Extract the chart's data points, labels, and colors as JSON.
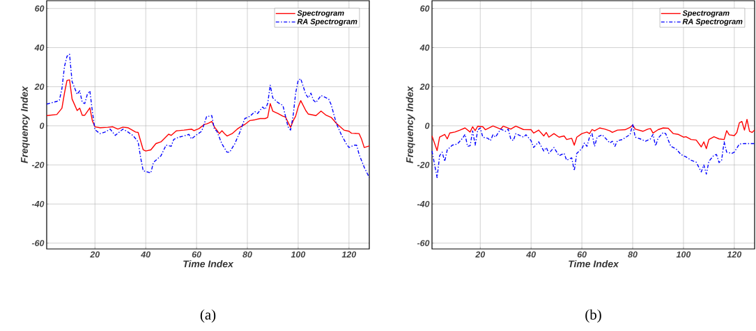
{
  "chart_data": [
    {
      "type": "line",
      "xlabel": "Time Index",
      "ylabel": "Frequency Index",
      "annotations": [
        "(a)"
      ],
      "xlim": [
        1,
        128
      ],
      "ylim": [
        -63,
        64
      ],
      "xticks": [
        20,
        40,
        60,
        80,
        100,
        120
      ],
      "yticks": [
        -60,
        -40,
        -20,
        0,
        20,
        40,
        60
      ],
      "grid": true,
      "legend": "top right",
      "marker": "none",
      "series": [
        {
          "name": "Spectrogram",
          "color": "#ff0000",
          "line_style": "solid",
          "x": [
            1,
            5,
            7,
            8,
            9,
            10,
            11,
            13,
            14,
            15,
            16,
            18,
            19,
            20,
            22,
            25,
            27,
            29,
            31,
            33,
            36,
            37,
            39,
            40,
            42,
            44,
            46,
            49,
            50,
            52,
            55,
            58,
            59,
            61,
            63,
            64,
            65,
            66,
            67,
            69,
            70,
            71,
            72,
            74,
            76,
            77,
            79,
            81,
            83,
            85,
            87,
            88,
            89,
            90,
            92,
            94,
            95,
            97,
            98,
            99,
            100,
            101,
            103,
            104,
            107,
            109,
            111,
            113,
            115,
            118,
            120,
            121,
            124,
            125,
            126,
            128
          ],
          "values": [
            5.2,
            5.8,
            9,
            16.7,
            23.2,
            23.5,
            13.7,
            7.8,
            9,
            5.4,
            5.4,
            9.2,
            2.5,
            -0.5,
            -1,
            -0.8,
            -0.5,
            -1.7,
            -0.7,
            -1,
            -3.2,
            -3.4,
            -12.3,
            -12.9,
            -12.3,
            -9.1,
            -8.2,
            -4.3,
            -4.9,
            -2.6,
            -2.2,
            -1.7,
            -2.5,
            -1.4,
            0.7,
            1,
            1.5,
            2.2,
            -0.5,
            -4,
            -2.5,
            -4,
            -5.2,
            -4,
            -1.7,
            -0.8,
            0.7,
            2.7,
            3.1,
            3.7,
            3.7,
            4.3,
            11.4,
            7.5,
            6.3,
            4.9,
            4.5,
            -0.8,
            2.5,
            4.9,
            9.6,
            12.9,
            7.8,
            6,
            5.2,
            7.5,
            5.4,
            4.3,
            1.3,
            -2.2,
            -2.8,
            -3.8,
            -4,
            -7,
            -11.1,
            -10.3
          ]
        },
        {
          "name": "RA Spectrogram",
          "color": "#0000ff",
          "line_style": "dashdot",
          "x": [
            1,
            5,
            6,
            7,
            8,
            9,
            10,
            11,
            13,
            14,
            15,
            16,
            17,
            18,
            19,
            20,
            22,
            24,
            26,
            28,
            31,
            33,
            35,
            37,
            38,
            39,
            42,
            43,
            46,
            48,
            50,
            51,
            53,
            55,
            57,
            58,
            60,
            62,
            63,
            64,
            65,
            66,
            67,
            68,
            70,
            72,
            73,
            75,
            77,
            79,
            81,
            83,
            84,
            86,
            87,
            88,
            89,
            90,
            92,
            94,
            95,
            96,
            97,
            98,
            99,
            100,
            101,
            103,
            104,
            105,
            106,
            107,
            109,
            111,
            112,
            113,
            115,
            117,
            119,
            120,
            122,
            123,
            124,
            126,
            128
          ],
          "values": [
            11.1,
            12.5,
            13.1,
            19,
            30.3,
            35.6,
            36.6,
            22.6,
            16.1,
            17.9,
            12,
            11.4,
            16.1,
            17.9,
            7.2,
            -2,
            -4,
            -3.2,
            -1.7,
            -4.9,
            -1.7,
            -3.2,
            -5,
            -8.2,
            -16.4,
            -23,
            -24.1,
            -18.8,
            -15.3,
            -9.9,
            -10.5,
            -7,
            -5.8,
            -5.2,
            -4.4,
            -6.7,
            -4.6,
            -2.8,
            0.9,
            4.9,
            4.9,
            5.2,
            -1.7,
            -2.8,
            -9.3,
            -13.5,
            -13.5,
            -9.3,
            -3.4,
            3.7,
            4.9,
            7.2,
            6.3,
            9.6,
            8.4,
            11.4,
            20.8,
            14.3,
            11.9,
            10.4,
            4.9,
            -0.5,
            -2.2,
            4.9,
            16.7,
            23.2,
            24.1,
            16.1,
            14.3,
            16.7,
            13.1,
            11.9,
            15.5,
            14.3,
            13.7,
            10.8,
            1.3,
            -4.6,
            -9.3,
            -11.1,
            -9.9,
            -9.9,
            -14.7,
            -21.2,
            -26.5
          ]
        }
      ]
    },
    {
      "type": "line",
      "xlabel": "Time Index",
      "ylabel": "Frequency Index",
      "annotations": [
        "(b)"
      ],
      "xlim": [
        1,
        128
      ],
      "ylim": [
        -63,
        64
      ],
      "xticks": [
        20,
        40,
        60,
        80,
        100,
        120
      ],
      "yticks": [
        -60,
        -40,
        -20,
        0,
        20,
        40,
        60
      ],
      "grid": true,
      "legend": "top right",
      "marker": "none",
      "series": [
        {
          "name": "Spectrogram",
          "color": "#ff0000",
          "line_style": "solid",
          "x": [
            1,
            3,
            4,
            6,
            7,
            8,
            10,
            12,
            14,
            16,
            17,
            18,
            19,
            21,
            22,
            25,
            28,
            29,
            32,
            34,
            37,
            40,
            41,
            43,
            45,
            46,
            47,
            49,
            51,
            53,
            54,
            56,
            57,
            58,
            60,
            62,
            63,
            64,
            65,
            67,
            69,
            71,
            72,
            74,
            77,
            79,
            80,
            81,
            84,
            86,
            87,
            88,
            90,
            92,
            94,
            96,
            98,
            100,
            101,
            103,
            105,
            107,
            108,
            109,
            110,
            112,
            114,
            116,
            117,
            118,
            120,
            121,
            122,
            123,
            124,
            125,
            126,
            127,
            128
          ],
          "values": [
            -5.2,
            -12.7,
            -5.8,
            -4.4,
            -6.7,
            -3.7,
            -3.2,
            -2.2,
            -1.1,
            -3.2,
            -0.5,
            -2.5,
            -0.2,
            -0.5,
            -2,
            -0.1,
            -1.7,
            -0.2,
            -1.7,
            -0.2,
            -1.9,
            -2,
            -3.7,
            -2.2,
            -5.2,
            -3.4,
            -5.8,
            -4,
            -5.8,
            -5.2,
            -7,
            -6.4,
            -9.9,
            -5.8,
            -4,
            -3.2,
            -4,
            -1.9,
            -2.6,
            -1.1,
            -1.7,
            -2.6,
            -3.4,
            -2.2,
            -2,
            -0.8,
            0.4,
            -1.7,
            -2.8,
            -1.7,
            -1.4,
            -3.7,
            -2,
            -1.1,
            -1.3,
            -4,
            -4.4,
            -5.8,
            -5.6,
            -7,
            -7.3,
            -10.8,
            -8.2,
            -11.7,
            -7,
            -5.6,
            -6.7,
            -7,
            -2.5,
            -4.6,
            -5,
            -3.4,
            1.5,
            2.2,
            -2.2,
            3.3,
            -2.8,
            -3.4,
            -2.2
          ]
        },
        {
          "name": "RA Spectrogram",
          "color": "#0000ff",
          "line_style": "dashdot",
          "x": [
            1,
            3,
            4,
            5,
            6,
            7,
            9,
            11,
            13,
            14,
            15,
            16,
            17,
            18,
            19,
            20,
            21,
            23,
            24,
            25,
            26,
            28,
            30,
            31,
            32,
            33,
            34,
            36,
            37,
            38,
            40,
            41,
            43,
            45,
            46,
            47,
            49,
            51,
            53,
            54,
            56,
            57,
            58,
            60,
            61,
            62,
            63,
            64,
            65,
            66,
            68,
            70,
            71,
            72,
            73,
            74,
            76,
            79,
            80,
            81,
            83,
            85,
            87,
            88,
            89,
            90,
            92,
            93,
            95,
            97,
            99,
            101,
            103,
            105,
            107,
            108,
            109,
            110,
            112,
            113,
            114,
            115,
            116,
            117,
            119,
            120,
            122,
            124,
            128
          ],
          "values": [
            -12.9,
            -26.5,
            -15.3,
            -13.5,
            -18.2,
            -12.3,
            -9.9,
            -9.3,
            -6.4,
            -4.4,
            -10.5,
            -10.2,
            -2.6,
            -9.9,
            -2.2,
            -1.1,
            -5.8,
            -6.4,
            -7.6,
            -4.6,
            -5.8,
            -1.7,
            -2.8,
            -1.7,
            -6.7,
            -7.6,
            -4,
            -5.2,
            -5.8,
            -4.6,
            -7.6,
            -11.1,
            -8.2,
            -12.9,
            -11.1,
            -14.1,
            -11.1,
            -15.3,
            -14.1,
            -17.6,
            -16.4,
            -23,
            -14.1,
            -11.7,
            -8.8,
            -10.5,
            -5.8,
            -4,
            -10.5,
            -5.8,
            -4.6,
            -7.3,
            -8.8,
            -7.9,
            -10.5,
            -7.6,
            -7,
            -4.4,
            0.9,
            -5.8,
            -6.7,
            -7.9,
            -6.7,
            -4.4,
            -10.3,
            -6.4,
            -3.4,
            -4,
            -10.5,
            -11.7,
            -14.7,
            -15.9,
            -17.6,
            -18.6,
            -23.6,
            -20,
            -24.7,
            -18.2,
            -15,
            -14.7,
            -18.8,
            -17.6,
            -8.2,
            -13.5,
            -14.1,
            -13.5,
            -9.3,
            -9.1,
            -9.1
          ]
        }
      ]
    }
  ]
}
